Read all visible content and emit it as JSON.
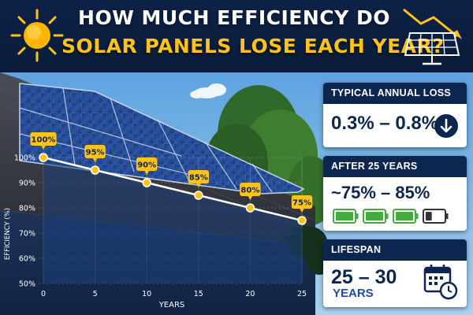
{
  "header": {
    "title_line1": "HOW MUCH EFFICIENCY DO",
    "title_line2": "SOLAR PANELS LOSE EACH YEAR?"
  },
  "chart_data": {
    "type": "line",
    "x": [
      0,
      5,
      10,
      15,
      20,
      25
    ],
    "series": [
      {
        "values": [
          100,
          95,
          90,
          85,
          80,
          75
        ]
      }
    ],
    "data_labels": [
      "100%",
      "95%",
      "90%",
      "85%",
      "80%",
      "75%"
    ],
    "xlabel": "YEARS",
    "ylabel": "EFFICIENCY (%)",
    "x_ticks": [
      "0",
      "5",
      "10",
      "15",
      "20",
      "25"
    ],
    "y_ticks": [
      "100%",
      "90%",
      "80%",
      "70%",
      "60%",
      "50%"
    ],
    "xlim": [
      0,
      25
    ],
    "ylim": [
      50,
      100
    ],
    "grid": true,
    "line_color": "#ffffff",
    "marker_color": "#ffc21a"
  },
  "cards": {
    "annual_loss": {
      "title": "TYPICAL ANNUAL LOSS",
      "value": "0.3% – 0.8%",
      "icon": "down-arrow-icon"
    },
    "after_25": {
      "title": "AFTER 25 YEARS",
      "value": "~75% – 85%",
      "icon": "battery-icons",
      "battery_levels": [
        1,
        1,
        1,
        0.35
      ]
    },
    "lifespan": {
      "title": "LIFESPAN",
      "value": "25 – 30",
      "unit": "YEARS",
      "icon": "calendar-clock-icon"
    }
  },
  "colors": {
    "navy": "#0c2650",
    "accent_yellow": "#ffc21a",
    "battery_green": "#3fae3a"
  }
}
